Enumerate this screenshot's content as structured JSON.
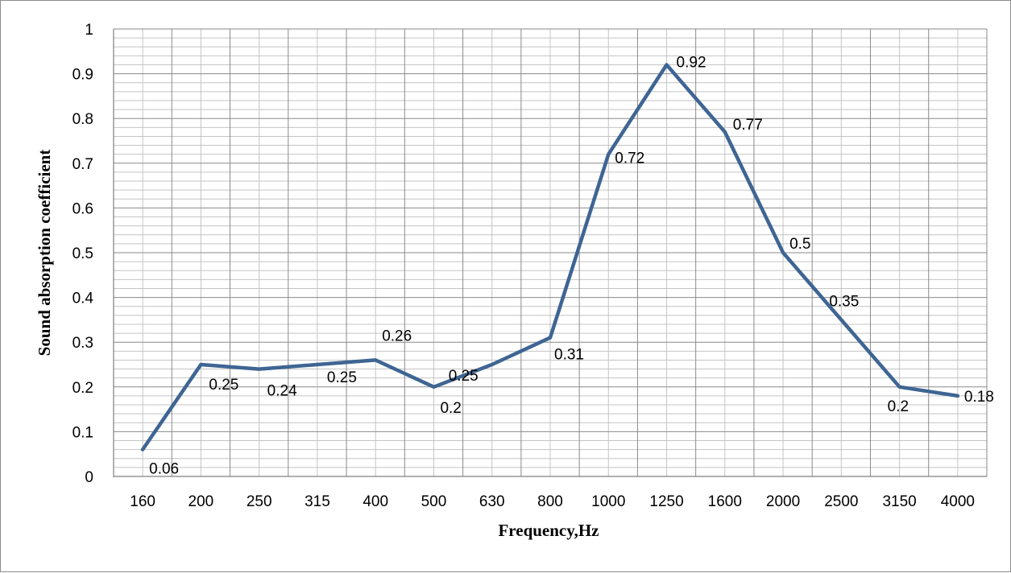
{
  "chart_data": {
    "type": "line",
    "title": "",
    "xlabel": "Frequency,Hz",
    "ylabel": "Sound absorption coefficient",
    "categories": [
      "160",
      "200",
      "250",
      "315",
      "400",
      "500",
      "630",
      "800",
      "1000",
      "1250",
      "1600",
      "2000",
      "2500",
      "3150",
      "4000"
    ],
    "series": [
      {
        "values": [
          0.06,
          0.25,
          0.24,
          0.25,
          0.26,
          0.2,
          0.25,
          0.31,
          0.72,
          0.92,
          0.77,
          0.5,
          0.35,
          0.2,
          0.18
        ],
        "color": "#3E6593"
      }
    ],
    "ylim": [
      0,
      1
    ],
    "yticks": [
      "0",
      "0.1",
      "0.2",
      "0.3",
      "0.4",
      "0.5",
      "0.6",
      "0.7",
      "0.8",
      "0.9",
      "1"
    ],
    "data_labels": [
      "0.06",
      "0.25",
      "0.24",
      "0.25",
      "0.26",
      "0.2",
      "0.25",
      "0.31",
      "0.72",
      "0.92",
      "0.77",
      "0.5",
      "0.35",
      "0.2",
      "0.18"
    ],
    "grid": true,
    "legend": "none"
  }
}
